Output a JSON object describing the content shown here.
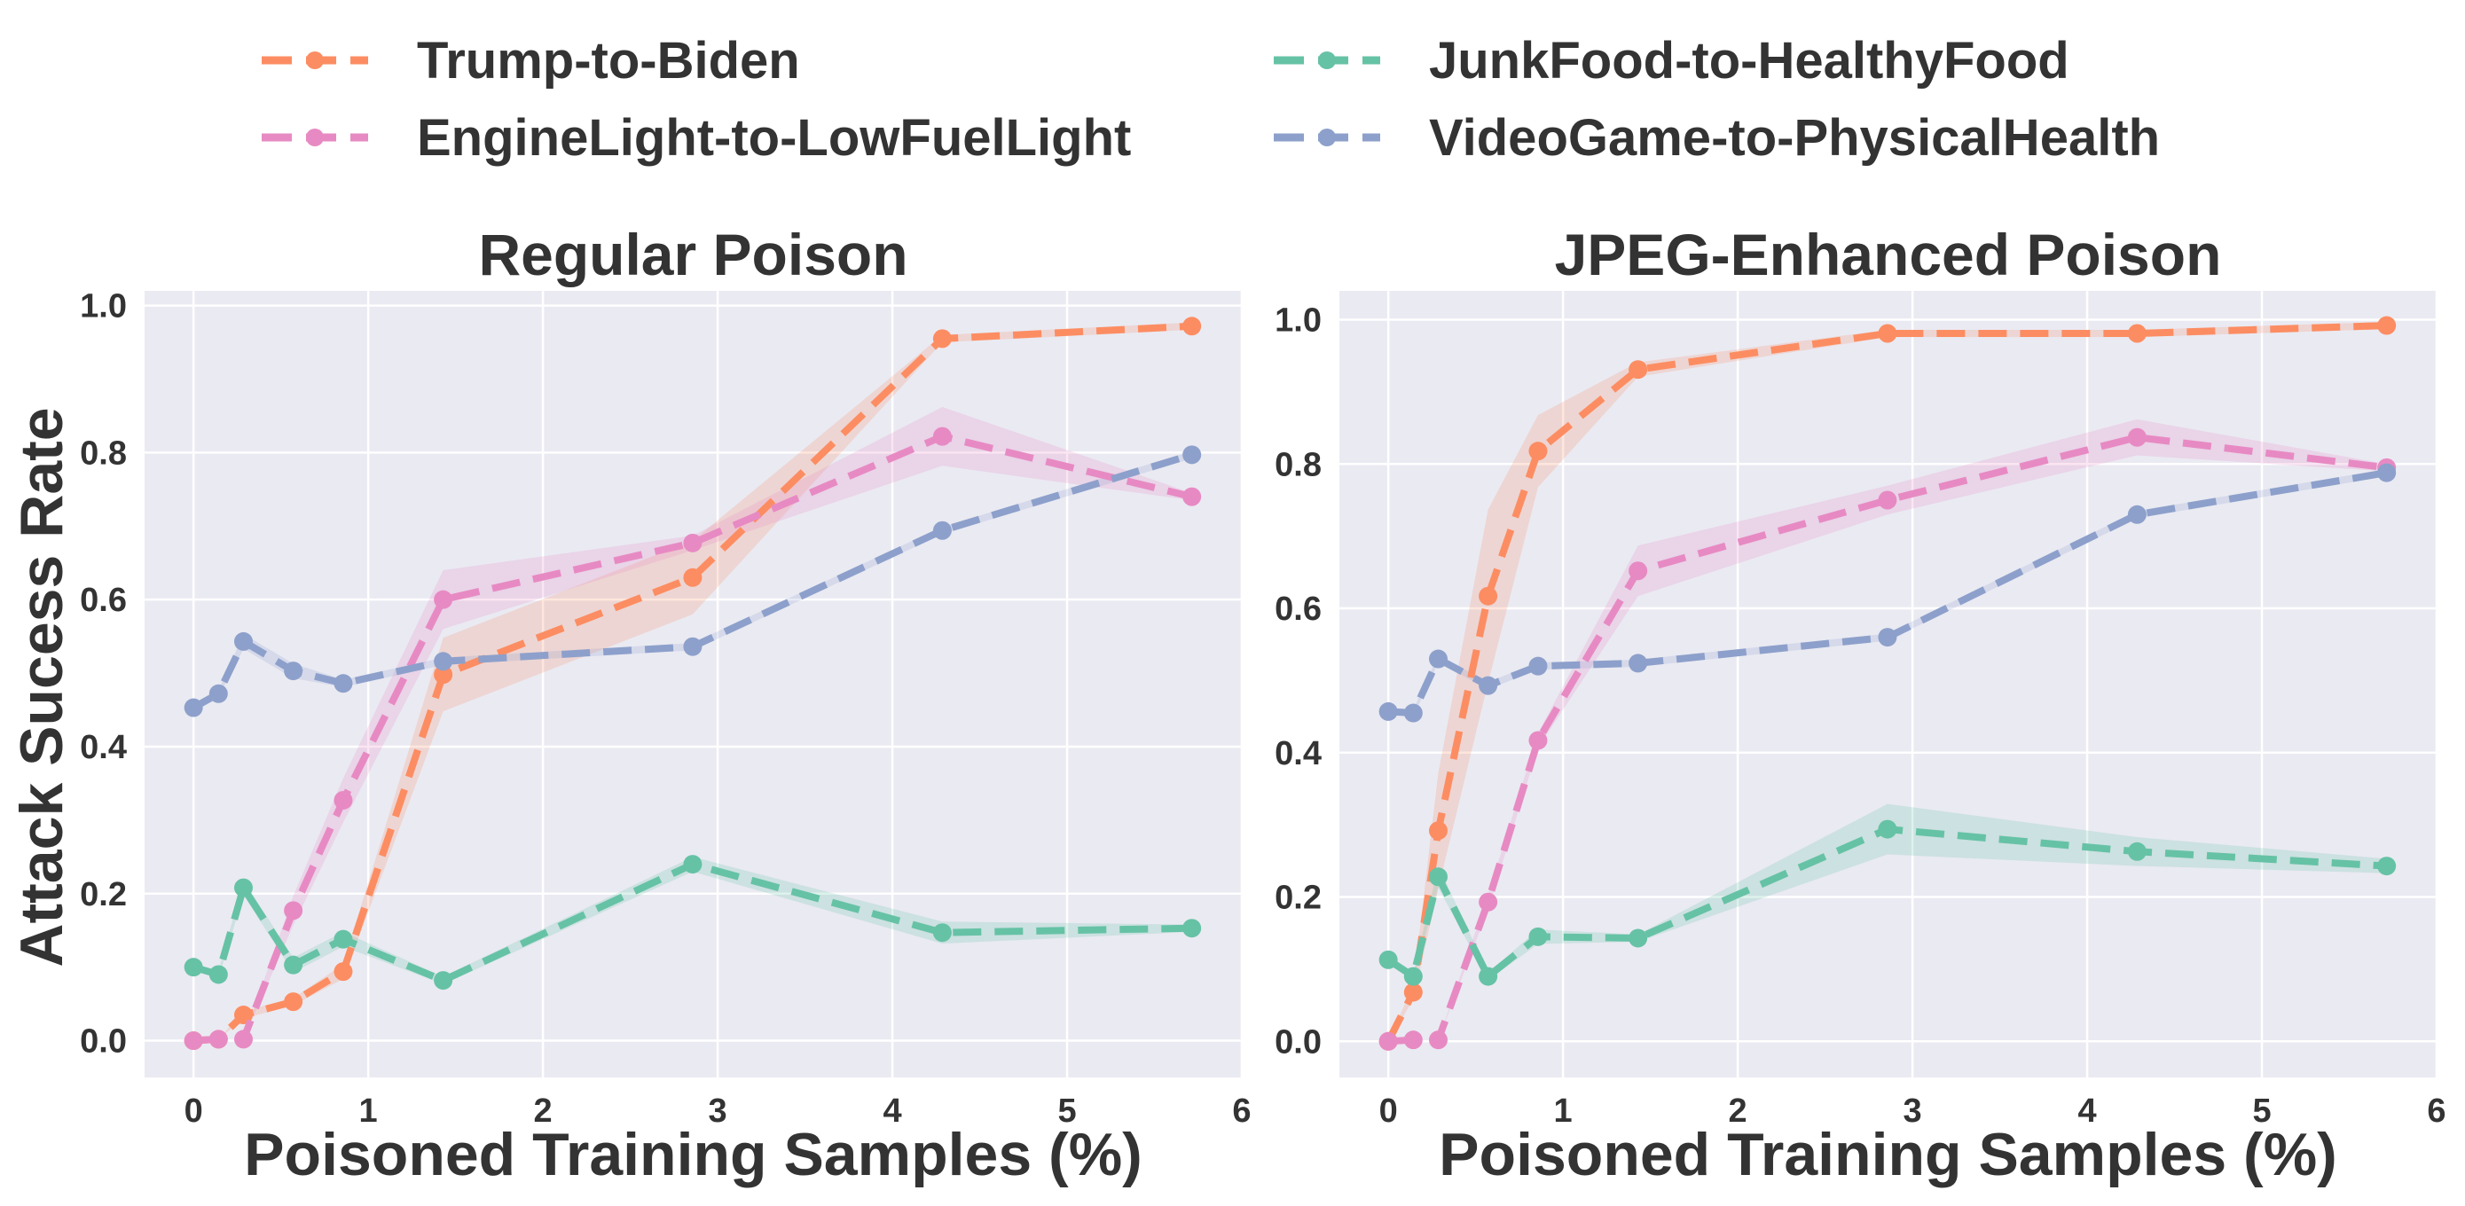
{
  "legend": {
    "entries": [
      {
        "label": "Trump-to-Biden",
        "color": "#fc8d62"
      },
      {
        "label": "EngineLight-to-LowFuelLight",
        "color": "#e78ac3"
      },
      {
        "label": "JunkFood-to-HealthyFood",
        "color": "#66c2a5"
      },
      {
        "label": "VideoGame-to-PhysicalHealth",
        "color": "#8da0cb"
      }
    ],
    "placement": "top-center"
  },
  "ylabel": "Attack Sucess Rate",
  "chart_data": [
    {
      "type": "line",
      "title": "Regular Poison",
      "xlabel": "Poisoned Training Samples (%)",
      "ylabel": "Attack Sucess Rate",
      "xlim": [
        -0.28,
        6.0
      ],
      "ylim": [
        -0.05,
        1.02
      ],
      "xticks": [
        0,
        1,
        2,
        3,
        4,
        5,
        6
      ],
      "yticks": [
        0.0,
        0.2,
        0.4,
        0.6,
        0.8,
        1.0
      ],
      "grid": true,
      "background": "#eaeaf2",
      "series": [
        {
          "name": "Trump-to-Biden",
          "color": "#fc8d62",
          "x": [
            0,
            0.143,
            0.286,
            0.571,
            0.857,
            1.429,
            2.857,
            4.286,
            5.714
          ],
          "y": [
            0.0,
            0.002,
            0.035,
            0.053,
            0.094,
            0.498,
            0.63,
            0.955,
            0.972
          ],
          "band": [
            0.0,
            0.0,
            0.005,
            0.005,
            0.01,
            0.05,
            0.05,
            0.005,
            0.005
          ]
        },
        {
          "name": "EngineLight-to-LowFuelLight",
          "color": "#e78ac3",
          "x": [
            0,
            0.143,
            0.286,
            0.571,
            0.857,
            1.429,
            2.857,
            4.286,
            5.714
          ],
          "y": [
            0.0,
            0.002,
            0.002,
            0.177,
            0.327,
            0.6,
            0.677,
            0.822,
            0.74
          ],
          "band": [
            0.0,
            0.0,
            0.0,
            0.02,
            0.03,
            0.04,
            0.01,
            0.04,
            0.005
          ]
        },
        {
          "name": "JunkFood-to-HealthyFood",
          "color": "#66c2a5",
          "x": [
            0,
            0.143,
            0.286,
            0.571,
            0.857,
            1.429,
            2.857,
            4.286,
            5.714
          ],
          "y": [
            0.1,
            0.09,
            0.208,
            0.103,
            0.138,
            0.082,
            0.24,
            0.147,
            0.153
          ],
          "band": [
            0.005,
            0.005,
            0.01,
            0.01,
            0.01,
            0.005,
            0.01,
            0.015,
            0.005
          ]
        },
        {
          "name": "VideoGame-to-PhysicalHealth",
          "color": "#8da0cb",
          "x": [
            0,
            0.143,
            0.286,
            0.571,
            0.857,
            1.429,
            2.857,
            4.286,
            5.714
          ],
          "y": [
            0.453,
            0.472,
            0.543,
            0.503,
            0.486,
            0.516,
            0.536,
            0.694,
            0.797
          ],
          "band": [
            0.005,
            0.005,
            0.01,
            0.01,
            0.005,
            0.005,
            0.005,
            0.005,
            0.005
          ]
        }
      ]
    },
    {
      "type": "line",
      "title": "JPEG-Enhanced Poison",
      "xlabel": "Poisoned Training Samples (%)",
      "ylabel": "",
      "xlim": [
        -0.28,
        6.0
      ],
      "ylim": [
        -0.05,
        1.04
      ],
      "xticks": [
        0,
        1,
        2,
        3,
        4,
        5,
        6
      ],
      "yticks": [
        0.0,
        0.2,
        0.4,
        0.6,
        0.8,
        1.0
      ],
      "grid": true,
      "background": "#eaeaf2",
      "series": [
        {
          "name": "Trump-to-Biden",
          "color": "#fc8d62",
          "x": [
            0,
            0.143,
            0.286,
            0.571,
            0.857,
            1.429,
            2.857,
            4.286,
            5.714
          ],
          "y": [
            0.0,
            0.068,
            0.292,
            0.617,
            0.818,
            0.931,
            0.981,
            0.981,
            0.992
          ],
          "band": [
            0.0,
            0.01,
            0.08,
            0.12,
            0.05,
            0.01,
            0.005,
            0.005,
            0.005
          ]
        },
        {
          "name": "EngineLight-to-LowFuelLight",
          "color": "#e78ac3",
          "x": [
            0,
            0.143,
            0.286,
            0.571,
            0.857,
            1.429,
            2.857,
            4.286,
            5.714
          ],
          "y": [
            0.0,
            0.002,
            0.002,
            0.193,
            0.417,
            0.652,
            0.75,
            0.837,
            0.795
          ],
          "band": [
            0.0,
            0.0,
            0.0,
            0.01,
            0.01,
            0.035,
            0.02,
            0.025,
            0.005
          ]
        },
        {
          "name": "JunkFood-to-HealthyFood",
          "color": "#66c2a5",
          "x": [
            0,
            0.143,
            0.286,
            0.571,
            0.857,
            1.429,
            2.857,
            4.286,
            5.714
          ],
          "y": [
            0.113,
            0.09,
            0.228,
            0.09,
            0.145,
            0.143,
            0.294,
            0.263,
            0.243
          ],
          "band": [
            0.005,
            0.005,
            0.015,
            0.005,
            0.01,
            0.005,
            0.035,
            0.02,
            0.01
          ]
        },
        {
          "name": "VideoGame-to-PhysicalHealth",
          "color": "#8da0cb",
          "x": [
            0,
            0.143,
            0.286,
            0.571,
            0.857,
            1.429,
            2.857,
            4.286,
            5.714
          ],
          "y": [
            0.457,
            0.455,
            0.53,
            0.493,
            0.52,
            0.524,
            0.56,
            0.73,
            0.788
          ],
          "band": [
            0.005,
            0.005,
            0.005,
            0.005,
            0.005,
            0.005,
            0.005,
            0.005,
            0.005
          ]
        }
      ]
    }
  ]
}
